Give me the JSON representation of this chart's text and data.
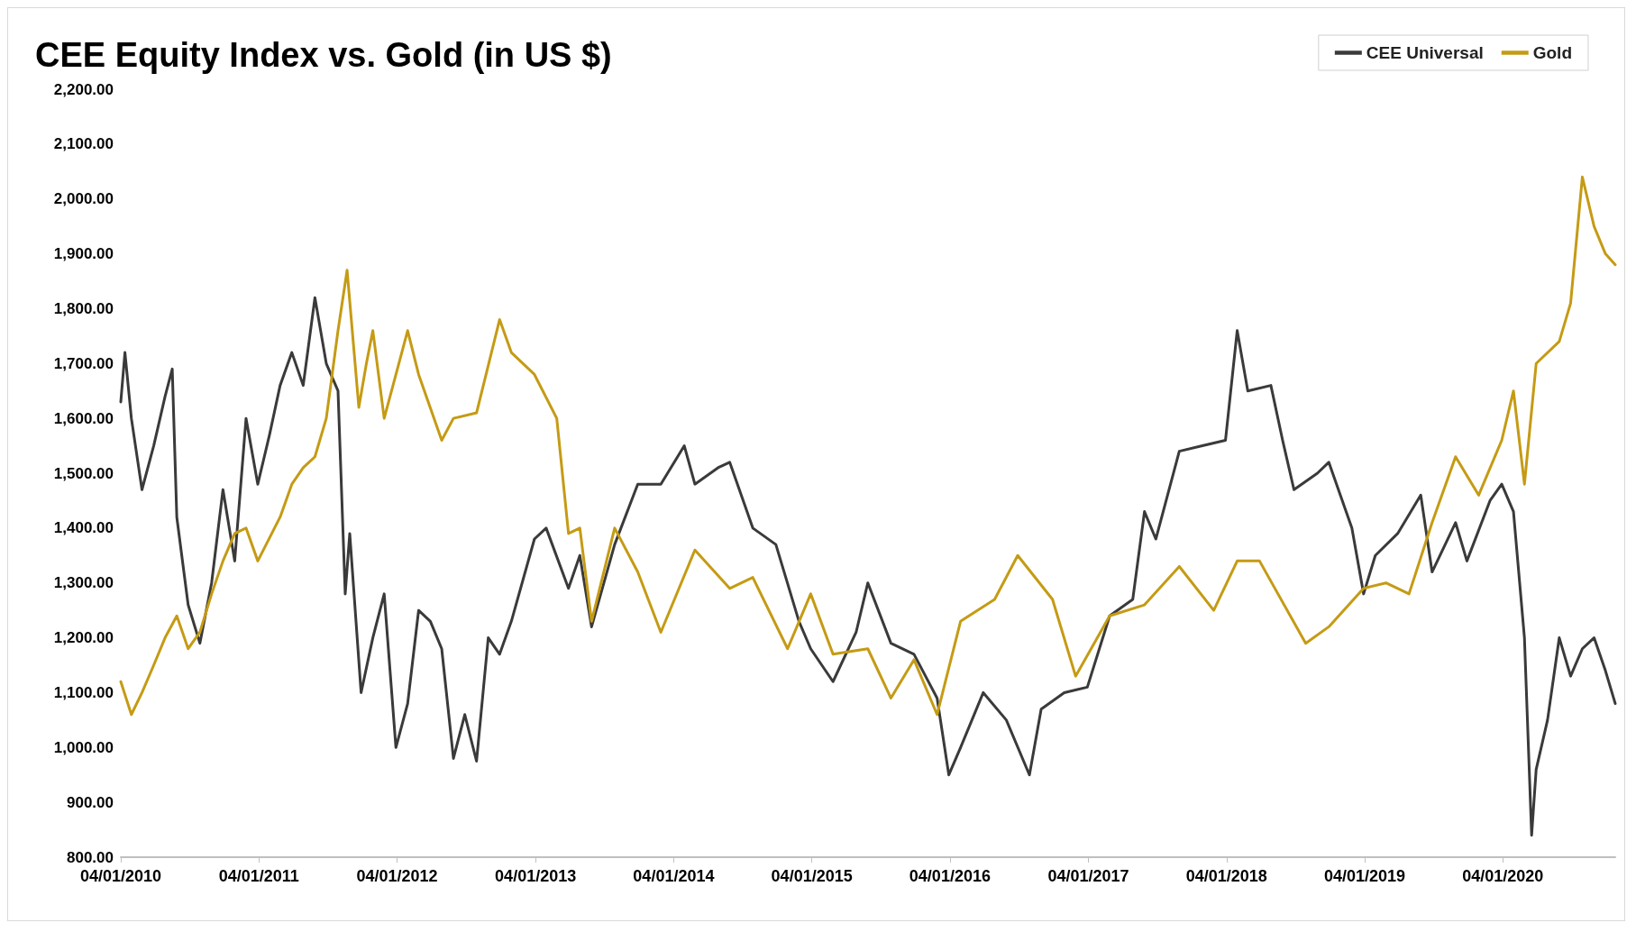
{
  "chart_data": {
    "type": "line",
    "title": "CEE Equity Index vs. Gold (in US $)",
    "legend": "top right",
    "grid": false,
    "marker": "none",
    "line_style": "solid",
    "xlim": [
      "2010-01-04",
      "2020-10-27"
    ],
    "xticks": [
      {
        "value": "2010-01-04",
        "label": "04/01/2010"
      },
      {
        "value": "2011-01-04",
        "label": "04/01/2011"
      },
      {
        "value": "2012-01-04",
        "label": "04/01/2012"
      },
      {
        "value": "2013-01-04",
        "label": "04/01/2013"
      },
      {
        "value": "2014-01-04",
        "label": "04/01/2014"
      },
      {
        "value": "2015-01-04",
        "label": "04/01/2015"
      },
      {
        "value": "2016-01-04",
        "label": "04/01/2016"
      },
      {
        "value": "2017-01-04",
        "label": "04/01/2017"
      },
      {
        "value": "2018-01-04",
        "label": "04/01/2018"
      },
      {
        "value": "2019-01-04",
        "label": "04/01/2019"
      },
      {
        "value": "2020-01-04",
        "label": "04/01/2020"
      }
    ],
    "ylim": [
      800,
      2200
    ],
    "yticks": [
      {
        "value": 800,
        "label": "800.00"
      },
      {
        "value": 900,
        "label": "900.00"
      },
      {
        "value": 1000,
        "label": "1,000.00"
      },
      {
        "value": 1100,
        "label": "1,100.00"
      },
      {
        "value": 1200,
        "label": "1,200.00"
      },
      {
        "value": 1300,
        "label": "1,300.00"
      },
      {
        "value": 1400,
        "label": "1,400.00"
      },
      {
        "value": 1500,
        "label": "1,500.00"
      },
      {
        "value": 1600,
        "label": "1,600.00"
      },
      {
        "value": 1700,
        "label": "1,700.00"
      },
      {
        "value": 1800,
        "label": "1,800.00"
      },
      {
        "value": 1900,
        "label": "1,900.00"
      },
      {
        "value": 2000,
        "label": "2,000.00"
      },
      {
        "value": 2100,
        "label": "2,100.00"
      },
      {
        "value": 2200,
        "label": "2,200.00"
      }
    ],
    "series": [
      {
        "name": "CEE Universal",
        "color": "#3a3a3a",
        "x": [
          "2010-01-04",
          "2010-01-15",
          "2010-02-01",
          "2010-03-01",
          "2010-04-01",
          "2010-05-01",
          "2010-05-20",
          "2010-06-01",
          "2010-07-01",
          "2010-08-01",
          "2010-09-01",
          "2010-10-01",
          "2010-11-01",
          "2010-12-01",
          "2011-01-01",
          "2011-02-01",
          "2011-03-01",
          "2011-04-01",
          "2011-05-01",
          "2011-06-01",
          "2011-07-01",
          "2011-08-01",
          "2011-08-20",
          "2011-09-01",
          "2011-10-01",
          "2011-11-01",
          "2011-12-01",
          "2012-01-01",
          "2012-02-01",
          "2012-03-01",
          "2012-04-01",
          "2012-05-01",
          "2012-06-01",
          "2012-07-01",
          "2012-08-01",
          "2012-09-01",
          "2012-10-01",
          "2012-11-01",
          "2013-01-01",
          "2013-02-01",
          "2013-04-01",
          "2013-05-01",
          "2013-06-01",
          "2013-08-01",
          "2013-10-01",
          "2013-12-01",
          "2014-02-01",
          "2014-03-01",
          "2014-05-01",
          "2014-06-01",
          "2014-08-01",
          "2014-10-01",
          "2014-12-01",
          "2015-01-01",
          "2015-03-01",
          "2015-05-01",
          "2015-06-01",
          "2015-08-01",
          "2015-10-01",
          "2015-12-01",
          "2016-01-01",
          "2016-02-01",
          "2016-04-01",
          "2016-06-01",
          "2016-08-01",
          "2016-09-01",
          "2016-11-01",
          "2017-01-01",
          "2017-03-01",
          "2017-05-01",
          "2017-06-01",
          "2017-07-01",
          "2017-09-01",
          "2017-11-01",
          "2018-01-01",
          "2018-02-01",
          "2018-03-01",
          "2018-05-01",
          "2018-06-01",
          "2018-07-01",
          "2018-09-01",
          "2018-10-01",
          "2018-12-01",
          "2019-01-01",
          "2019-02-01",
          "2019-04-01",
          "2019-06-01",
          "2019-07-01",
          "2019-09-01",
          "2019-10-01",
          "2019-12-01",
          "2020-01-01",
          "2020-02-01",
          "2020-03-01",
          "2020-03-20",
          "2020-04-01",
          "2020-05-01",
          "2020-06-01",
          "2020-07-01",
          "2020-08-01",
          "2020-09-01",
          "2020-10-01",
          "2020-10-27"
        ],
        "values": [
          1630,
          1720,
          1600,
          1470,
          1550,
          1640,
          1690,
          1420,
          1260,
          1190,
          1300,
          1470,
          1340,
          1600,
          1480,
          1570,
          1660,
          1720,
          1660,
          1820,
          1700,
          1650,
          1280,
          1390,
          1100,
          1200,
          1280,
          1000,
          1080,
          1250,
          1230,
          1180,
          980,
          1060,
          975,
          1200,
          1170,
          1230,
          1380,
          1400,
          1290,
          1350,
          1220,
          1370,
          1480,
          1480,
          1550,
          1480,
          1510,
          1520,
          1400,
          1370,
          1230,
          1180,
          1120,
          1210,
          1300,
          1190,
          1170,
          1090,
          950,
          1000,
          1100,
          1050,
          950,
          1070,
          1100,
          1110,
          1240,
          1270,
          1430,
          1380,
          1540,
          1550,
          1560,
          1760,
          1650,
          1660,
          1560,
          1470,
          1500,
          1520,
          1400,
          1280,
          1350,
          1390,
          1460,
          1320,
          1410,
          1340,
          1450,
          1480,
          1430,
          1200,
          840,
          960,
          1050,
          1200,
          1130,
          1180,
          1200,
          1140,
          1080
        ]
      },
      {
        "name": "Gold",
        "color": "#c59b14",
        "x": [
          "2010-01-04",
          "2010-02-01",
          "2010-03-01",
          "2010-04-01",
          "2010-05-01",
          "2010-06-01",
          "2010-07-01",
          "2010-08-01",
          "2010-09-01",
          "2010-10-01",
          "2010-11-01",
          "2010-12-01",
          "2011-01-01",
          "2011-03-01",
          "2011-04-01",
          "2011-05-01",
          "2011-06-01",
          "2011-07-01",
          "2011-08-01",
          "2011-08-25",
          "2011-09-25",
          "2011-10-15",
          "2011-11-01",
          "2011-12-01",
          "2012-02-01",
          "2012-03-01",
          "2012-05-01",
          "2012-06-01",
          "2012-08-01",
          "2012-10-01",
          "2012-11-01",
          "2013-01-01",
          "2013-03-01",
          "2013-04-01",
          "2013-05-01",
          "2013-06-01",
          "2013-08-01",
          "2013-10-01",
          "2013-12-01",
          "2014-03-01",
          "2014-06-01",
          "2014-08-01",
          "2014-11-01",
          "2015-01-01",
          "2015-03-01",
          "2015-06-01",
          "2015-08-01",
          "2015-10-01",
          "2015-12-01",
          "2016-02-01",
          "2016-05-01",
          "2016-07-01",
          "2016-10-01",
          "2016-12-01",
          "2017-03-01",
          "2017-06-01",
          "2017-09-01",
          "2017-12-01",
          "2018-02-01",
          "2018-04-01",
          "2018-08-01",
          "2018-10-01",
          "2019-01-01",
          "2019-03-01",
          "2019-05-01",
          "2019-07-01",
          "2019-09-01",
          "2019-11-01",
          "2020-01-01",
          "2020-02-01",
          "2020-03-01",
          "2020-04-01",
          "2020-06-01",
          "2020-07-01",
          "2020-08-01",
          "2020-09-01",
          "2020-10-01",
          "2020-10-27"
        ],
        "values": [
          1120,
          1060,
          1100,
          1150,
          1200,
          1240,
          1180,
          1210,
          1280,
          1340,
          1390,
          1400,
          1340,
          1420,
          1480,
          1510,
          1530,
          1600,
          1760,
          1870,
          1620,
          1700,
          1760,
          1600,
          1760,
          1680,
          1560,
          1600,
          1610,
          1780,
          1720,
          1680,
          1600,
          1390,
          1400,
          1230,
          1400,
          1320,
          1210,
          1360,
          1290,
          1310,
          1180,
          1280,
          1170,
          1180,
          1090,
          1160,
          1060,
          1230,
          1270,
          1350,
          1270,
          1130,
          1240,
          1260,
          1330,
          1250,
          1340,
          1340,
          1190,
          1220,
          1290,
          1300,
          1280,
          1410,
          1530,
          1460,
          1560,
          1650,
          1480,
          1700,
          1740,
          1810,
          2040,
          1950,
          1900,
          1880
        ]
      }
    ]
  }
}
